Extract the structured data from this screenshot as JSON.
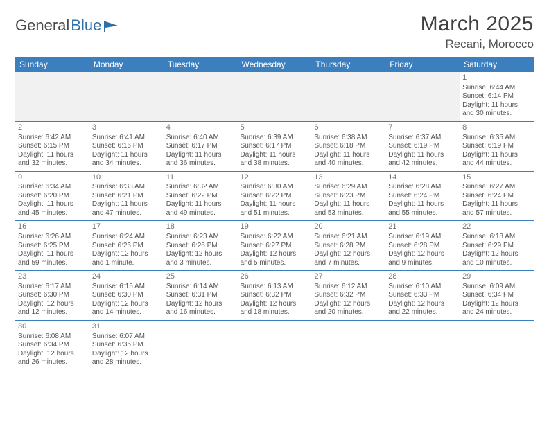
{
  "logo": {
    "part1": "General",
    "part2": "Blue"
  },
  "header": {
    "month_year": "March 2025",
    "location": "Recani, Morocco"
  },
  "colors": {
    "header_bg": "#3b7fbf",
    "header_text": "#ffffff",
    "cell_text": "#555555",
    "row_border": "#3b7fbf",
    "empty_bg": "#f1f1f1",
    "page_bg": "#ffffff"
  },
  "typography": {
    "title_fontsize_pt": 22,
    "location_fontsize_pt": 13,
    "weekday_fontsize_pt": 9,
    "cell_fontsize_pt": 7.5,
    "font_family": "Arial"
  },
  "layout": {
    "columns": 7,
    "rows": 6,
    "first_day_column_index": 6
  },
  "weekdays": [
    "Sunday",
    "Monday",
    "Tuesday",
    "Wednesday",
    "Thursday",
    "Friday",
    "Saturday"
  ],
  "labels": {
    "sunrise_prefix": "Sunrise: ",
    "sunset_prefix": "Sunset: ",
    "daylight_prefix": "Daylight: "
  },
  "days": [
    {
      "n": 1,
      "sunrise": "6:44 AM",
      "sunset": "6:14 PM",
      "daylight": "11 hours and 30 minutes."
    },
    {
      "n": 2,
      "sunrise": "6:42 AM",
      "sunset": "6:15 PM",
      "daylight": "11 hours and 32 minutes."
    },
    {
      "n": 3,
      "sunrise": "6:41 AM",
      "sunset": "6:16 PM",
      "daylight": "11 hours and 34 minutes."
    },
    {
      "n": 4,
      "sunrise": "6:40 AM",
      "sunset": "6:17 PM",
      "daylight": "11 hours and 36 minutes."
    },
    {
      "n": 5,
      "sunrise": "6:39 AM",
      "sunset": "6:17 PM",
      "daylight": "11 hours and 38 minutes."
    },
    {
      "n": 6,
      "sunrise": "6:38 AM",
      "sunset": "6:18 PM",
      "daylight": "11 hours and 40 minutes."
    },
    {
      "n": 7,
      "sunrise": "6:37 AM",
      "sunset": "6:19 PM",
      "daylight": "11 hours and 42 minutes."
    },
    {
      "n": 8,
      "sunrise": "6:35 AM",
      "sunset": "6:19 PM",
      "daylight": "11 hours and 44 minutes."
    },
    {
      "n": 9,
      "sunrise": "6:34 AM",
      "sunset": "6:20 PM",
      "daylight": "11 hours and 45 minutes."
    },
    {
      "n": 10,
      "sunrise": "6:33 AM",
      "sunset": "6:21 PM",
      "daylight": "11 hours and 47 minutes."
    },
    {
      "n": 11,
      "sunrise": "6:32 AM",
      "sunset": "6:22 PM",
      "daylight": "11 hours and 49 minutes."
    },
    {
      "n": 12,
      "sunrise": "6:30 AM",
      "sunset": "6:22 PM",
      "daylight": "11 hours and 51 minutes."
    },
    {
      "n": 13,
      "sunrise": "6:29 AM",
      "sunset": "6:23 PM",
      "daylight": "11 hours and 53 minutes."
    },
    {
      "n": 14,
      "sunrise": "6:28 AM",
      "sunset": "6:24 PM",
      "daylight": "11 hours and 55 minutes."
    },
    {
      "n": 15,
      "sunrise": "6:27 AM",
      "sunset": "6:24 PM",
      "daylight": "11 hours and 57 minutes."
    },
    {
      "n": 16,
      "sunrise": "6:26 AM",
      "sunset": "6:25 PM",
      "daylight": "11 hours and 59 minutes."
    },
    {
      "n": 17,
      "sunrise": "6:24 AM",
      "sunset": "6:26 PM",
      "daylight": "12 hours and 1 minute."
    },
    {
      "n": 18,
      "sunrise": "6:23 AM",
      "sunset": "6:26 PM",
      "daylight": "12 hours and 3 minutes."
    },
    {
      "n": 19,
      "sunrise": "6:22 AM",
      "sunset": "6:27 PM",
      "daylight": "12 hours and 5 minutes."
    },
    {
      "n": 20,
      "sunrise": "6:21 AM",
      "sunset": "6:28 PM",
      "daylight": "12 hours and 7 minutes."
    },
    {
      "n": 21,
      "sunrise": "6:19 AM",
      "sunset": "6:28 PM",
      "daylight": "12 hours and 9 minutes."
    },
    {
      "n": 22,
      "sunrise": "6:18 AM",
      "sunset": "6:29 PM",
      "daylight": "12 hours and 10 minutes."
    },
    {
      "n": 23,
      "sunrise": "6:17 AM",
      "sunset": "6:30 PM",
      "daylight": "12 hours and 12 minutes."
    },
    {
      "n": 24,
      "sunrise": "6:15 AM",
      "sunset": "6:30 PM",
      "daylight": "12 hours and 14 minutes."
    },
    {
      "n": 25,
      "sunrise": "6:14 AM",
      "sunset": "6:31 PM",
      "daylight": "12 hours and 16 minutes."
    },
    {
      "n": 26,
      "sunrise": "6:13 AM",
      "sunset": "6:32 PM",
      "daylight": "12 hours and 18 minutes."
    },
    {
      "n": 27,
      "sunrise": "6:12 AM",
      "sunset": "6:32 PM",
      "daylight": "12 hours and 20 minutes."
    },
    {
      "n": 28,
      "sunrise": "6:10 AM",
      "sunset": "6:33 PM",
      "daylight": "12 hours and 22 minutes."
    },
    {
      "n": 29,
      "sunrise": "6:09 AM",
      "sunset": "6:34 PM",
      "daylight": "12 hours and 24 minutes."
    },
    {
      "n": 30,
      "sunrise": "6:08 AM",
      "sunset": "6:34 PM",
      "daylight": "12 hours and 26 minutes."
    },
    {
      "n": 31,
      "sunrise": "6:07 AM",
      "sunset": "6:35 PM",
      "daylight": "12 hours and 28 minutes."
    }
  ]
}
